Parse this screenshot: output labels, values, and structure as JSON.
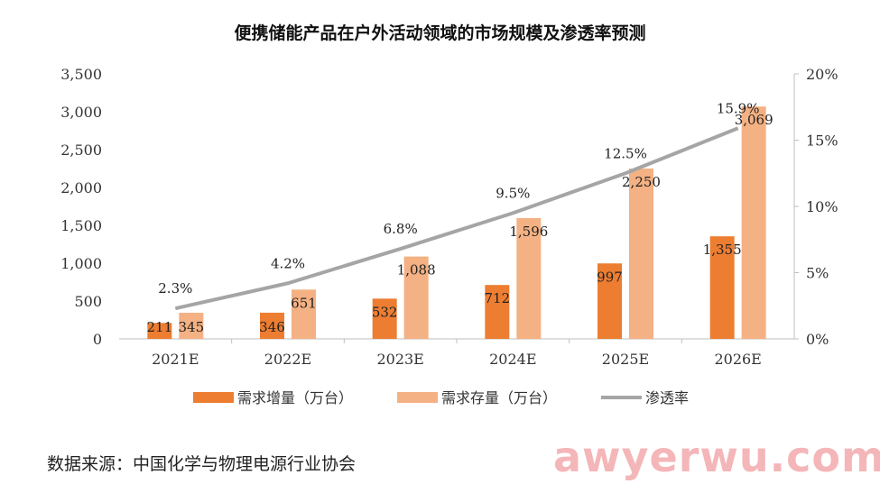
{
  "title": "便携储能产品在户外活动领域的市场规模及渗透率预测",
  "source": "数据来源：中国化学与物理电源行业协会",
  "watermark": "awyerwu.com",
  "colors": {
    "increment": "#ed7d31",
    "stock": "#f4b183",
    "rate": "#a5a5a5"
  },
  "chart_data": {
    "type": "bar",
    "categories": [
      "2021E",
      "2022E",
      "2023E",
      "2024E",
      "2025E",
      "2026E"
    ],
    "series": [
      {
        "name": "需求增量（万台）",
        "type": "bar",
        "axis": "left",
        "values": [
          211,
          346,
          532,
          712,
          997,
          1355
        ],
        "labels": [
          "211",
          "346",
          "532",
          "712",
          "997",
          "1,355"
        ]
      },
      {
        "name": "需求存量（万台）",
        "type": "bar",
        "axis": "left",
        "values": [
          345,
          651,
          1088,
          1596,
          2250,
          3069
        ],
        "labels": [
          "345",
          "651",
          "1,088",
          "1,596",
          "2,250",
          "3,069"
        ]
      },
      {
        "name": "渗透率",
        "type": "line",
        "axis": "right",
        "values": [
          2.3,
          4.2,
          6.8,
          9.5,
          12.5,
          15.9
        ],
        "labels": [
          "2.3%",
          "4.2%",
          "6.8%",
          "9.5%",
          "12.5%",
          "15.9%"
        ]
      }
    ],
    "ylim": [
      0,
      3500
    ],
    "yticks": [
      "0",
      "500",
      "1,000",
      "1,500",
      "2,000",
      "2,500",
      "3,000",
      "3,500"
    ],
    "y2lim": [
      0,
      20
    ],
    "y2ticks": [
      "0%",
      "5%",
      "10%",
      "15%",
      "20%"
    ],
    "legend_position": "bottom",
    "grid": false
  }
}
